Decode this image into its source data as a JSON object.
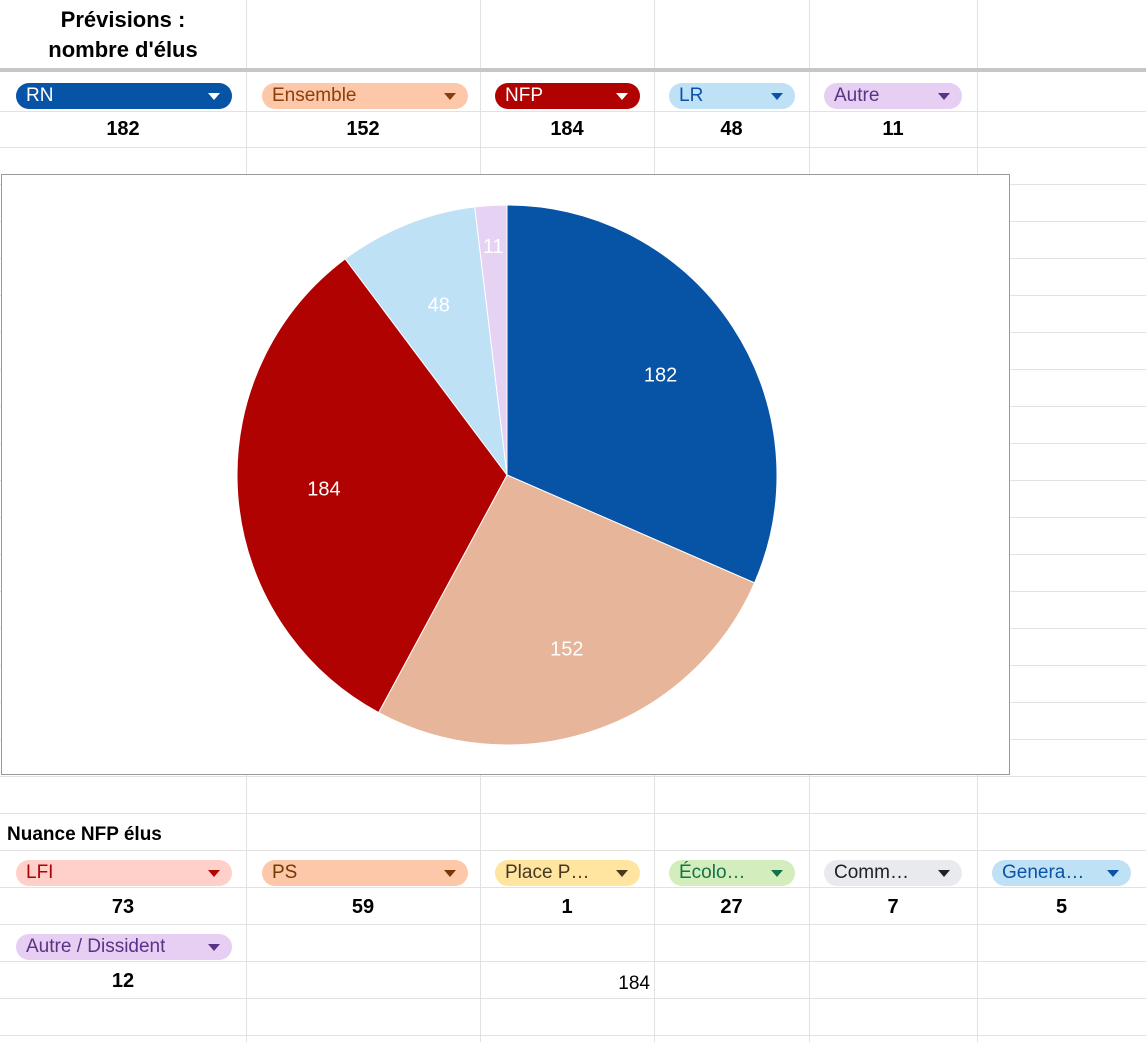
{
  "header": {
    "title_line1": "Prévisions :",
    "title_line2": "nombre d'élus"
  },
  "parties": [
    {
      "label": "RN",
      "value": "182",
      "bg": "#0753a6",
      "fg": "#ffffff",
      "arrow": "#ffffff"
    },
    {
      "label": "Ensemble",
      "value": "152",
      "bg": "#fdc8a9",
      "fg": "#8a3f0b",
      "arrow": "#8a3f0b"
    },
    {
      "label": "NFP",
      "value": "184",
      "bg": "#b10202",
      "fg": "#ffffff",
      "arrow": "#ffffff"
    },
    {
      "label": "LR",
      "value": "48",
      "bg": "#bfe1f6",
      "fg": "#0a53a8",
      "arrow": "#0a53a8"
    },
    {
      "label": "Autre",
      "value": "11",
      "bg": "#e6cff2",
      "fg": "#5a3286",
      "arrow": "#5a3286"
    }
  ],
  "nfp_section": {
    "title": "Nuance NFP élus"
  },
  "nfp_parties": [
    {
      "label": "LFI",
      "value": "73",
      "bg": "#ffcfc9",
      "fg": "#b10202",
      "arrow": "#b10202"
    },
    {
      "label": "PS",
      "value": "59",
      "bg": "#fdc8a9",
      "fg": "#753800",
      "arrow": "#753800"
    },
    {
      "label": "Place P…",
      "value": "1",
      "bg": "#ffe5a0",
      "fg": "#473821",
      "arrow": "#473821"
    },
    {
      "label": "Écolo…",
      "value": "27",
      "bg": "#d4edbc",
      "fg": "#11734b",
      "arrow": "#11734b"
    },
    {
      "label": "Comm…",
      "value": "7",
      "bg": "#e8eaed",
      "fg": "#202124",
      "arrow": "#202124"
    },
    {
      "label": "Genera…",
      "value": "5",
      "bg": "#bfe1f6",
      "fg": "#0a53a8",
      "arrow": "#0a53a8"
    },
    {
      "label": "Autre / Dissident",
      "value": "12",
      "bg": "#e6cff2",
      "fg": "#5a3286",
      "arrow": "#5a3286"
    }
  ],
  "nfp_total": "184",
  "chart_data": {
    "type": "pie",
    "title": "",
    "categories": [
      "RN",
      "Ensemble",
      "NFP",
      "LR",
      "Autre"
    ],
    "values": [
      182,
      152,
      184,
      48,
      11
    ],
    "colors": [
      "#0753a6",
      "#e6b59a",
      "#b10202",
      "#bfe1f6",
      "#e6d2f2"
    ],
    "data_labels": [
      "182",
      "152",
      "184",
      "48",
      "11"
    ],
    "legend": "none"
  }
}
